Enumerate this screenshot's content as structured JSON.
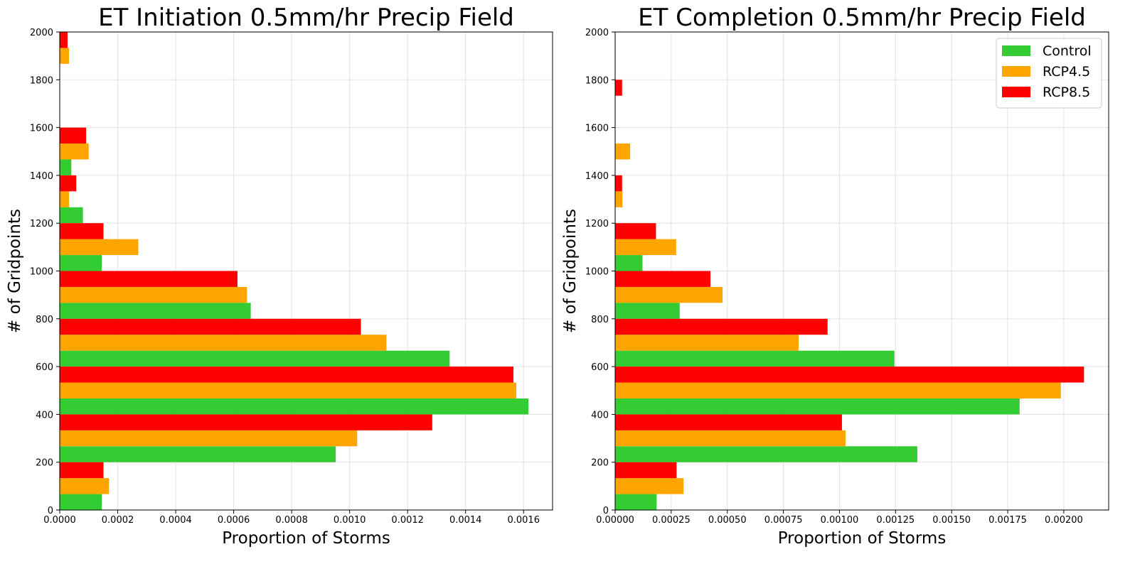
{
  "chart_data": [
    {
      "type": "bar",
      "orientation": "horizontal",
      "title": "ET Initiation 0.5mm/hr Precip Field",
      "xlabel": "Proportion of Storms",
      "ylabel": "# of Gridpoints",
      "xlim": [
        0,
        0.0017
      ],
      "ylim": [
        0,
        2000
      ],
      "xticks": [
        "0.0000",
        "0.0002",
        "0.0004",
        "0.0006",
        "0.0008",
        "0.0010",
        "0.0012",
        "0.0014",
        "0.0016"
      ],
      "yticks": [
        "0",
        "200",
        "400",
        "600",
        "800",
        "1000",
        "1200",
        "1400",
        "1600",
        "1800",
        "2000"
      ],
      "grid": true,
      "categories": [
        100,
        300,
        500,
        700,
        900,
        1100,
        1300,
        1500,
        1700,
        1900
      ],
      "series": [
        {
          "name": "Control",
          "color": "#33cc33",
          "values": [
            0.000145,
            0.000952,
            0.001617,
            0.001345,
            0.000659,
            0.000145,
            8e-05,
            4e-05,
            0,
            0
          ]
        },
        {
          "name": "RCP4.5",
          "color": "#ffa500",
          "values": [
            0.00017,
            0.001026,
            0.001575,
            0.001127,
            0.000646,
            0.000271,
            3.2e-05,
            0.0001,
            0,
            3.2e-05
          ]
        },
        {
          "name": "RCP8.5",
          "color": "#ff0000",
          "values": [
            0.000151,
            0.001285,
            0.001565,
            0.001039,
            0.000613,
            0.000151,
            5.7e-05,
            9.1e-05,
            0,
            2.7e-05
          ]
        }
      ]
    },
    {
      "type": "bar",
      "orientation": "horizontal",
      "title": "ET Completion 0.5mm/hr Precip Field",
      "xlabel": "Proportion of Storms",
      "ylabel": "# of Gridpoints",
      "xlim": [
        0,
        0.0022
      ],
      "ylim": [
        0,
        2000
      ],
      "xticks": [
        "0.00000",
        "0.00025",
        "0.00050",
        "0.00075",
        "0.00100",
        "0.00125",
        "0.00150",
        "0.00175",
        "0.00200"
      ],
      "yticks": [
        "0",
        "200",
        "400",
        "600",
        "800",
        "1000",
        "1200",
        "1400",
        "1600",
        "1800",
        "2000"
      ],
      "grid": true,
      "legend": "top-right",
      "categories": [
        100,
        300,
        500,
        700,
        900,
        1100,
        1300,
        1500,
        1700,
        1900
      ],
      "series": [
        {
          "name": "Control",
          "color": "#33cc33",
          "values": [
            0.000185,
            0.001347,
            0.001803,
            0.001245,
            0.000288,
            0.000122,
            0,
            0,
            0,
            0
          ]
        },
        {
          "name": "RCP4.5",
          "color": "#ffa500",
          "values": [
            0.000305,
            0.001027,
            0.001987,
            0.000818,
            0.000479,
            0.000272,
            3.3e-05,
            6.7e-05,
            0,
            0
          ]
        },
        {
          "name": "RCP8.5",
          "color": "#ff0000",
          "values": [
            0.000274,
            0.001011,
            0.00209,
            0.000947,
            0.000425,
            0.000182,
            3.1e-05,
            0,
            3.1e-05,
            0
          ]
        }
      ]
    }
  ]
}
